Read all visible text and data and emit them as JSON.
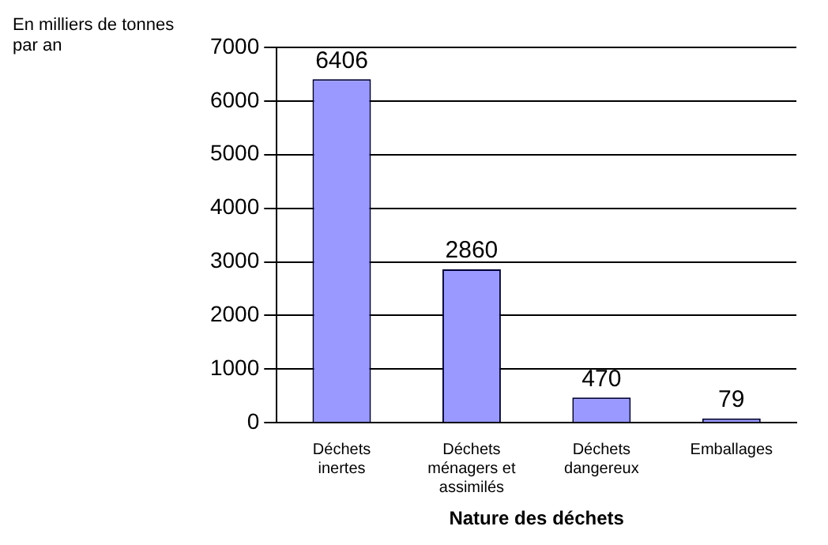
{
  "chart_data": {
    "type": "bar",
    "ylabel": "En milliers de tonnes par an",
    "xlabel": "Nature des déchets",
    "categories": [
      "Déchets inertes",
      "Déchets ménagers et assimilés",
      "Déchets dangereux",
      "Emballages"
    ],
    "values": [
      6406,
      2860,
      470,
      79
    ],
    "color": "#9999ff",
    "ylim": [
      0,
      7000
    ],
    "yticks": [
      0,
      1000,
      2000,
      3000,
      4000,
      5000,
      6000,
      7000
    ],
    "grid": "y",
    "legend": false,
    "data_labels": true
  }
}
